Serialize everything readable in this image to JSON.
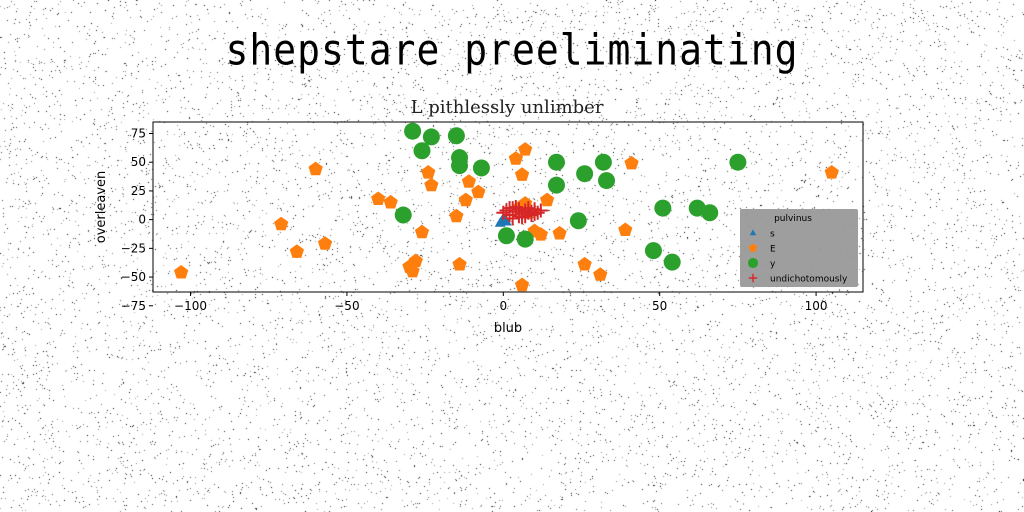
{
  "title": "shepstare preeliminating",
  "chart_data": {
    "type": "scatter",
    "title": "L pithlessly unlimber",
    "xlabel": "blub",
    "ylabel": "overleaven",
    "xlim": [
      -112,
      115
    ],
    "ylim": [
      -63,
      85
    ],
    "xticks": [
      -100,
      -50,
      0,
      50,
      100
    ],
    "yticks": [
      -75,
      -50,
      -25,
      0,
      25,
      50,
      75
    ],
    "xtick_labels": [
      "−100",
      "−50",
      "0",
      "50",
      "100"
    ],
    "ytick_labels": [
      "−75",
      "−50",
      "−25",
      "0",
      "25",
      "50",
      "75"
    ],
    "grid": false,
    "legend": {
      "placement": "lower-right",
      "title": "pulvinus",
      "background": "#999999"
    },
    "series": [
      {
        "name": "s",
        "marker": "triangle",
        "color": "#1f77b4",
        "points": [
          [
            -1,
            -3
          ],
          [
            0,
            -2
          ],
          [
            1,
            -2
          ],
          [
            0,
            1
          ]
        ]
      },
      {
        "name": "E",
        "marker": "pentagon",
        "color": "#ff7f0e",
        "points": [
          [
            -103,
            -46
          ],
          [
            -71,
            -4
          ],
          [
            -66,
            -28
          ],
          [
            -60,
            44
          ],
          [
            -57,
            -21
          ],
          [
            -40,
            18
          ],
          [
            -36,
            15
          ],
          [
            -30,
            -41
          ],
          [
            -29,
            -45
          ],
          [
            -28,
            -36
          ],
          [
            -26,
            -11
          ],
          [
            -24,
            41
          ],
          [
            -23,
            30
          ],
          [
            -15,
            3
          ],
          [
            -14,
            -39
          ],
          [
            -12,
            17
          ],
          [
            -11,
            33
          ],
          [
            -8,
            24
          ],
          [
            4,
            53
          ],
          [
            5,
            10
          ],
          [
            6,
            39
          ],
          [
            6,
            -57
          ],
          [
            7,
            61
          ],
          [
            7,
            14
          ],
          [
            8,
            6
          ],
          [
            10,
            -10
          ],
          [
            12,
            -13
          ],
          [
            14,
            17
          ],
          [
            18,
            -12
          ],
          [
            26,
            -39
          ],
          [
            31,
            -48
          ],
          [
            39,
            -9
          ],
          [
            41,
            49
          ],
          [
            105,
            41
          ]
        ]
      },
      {
        "name": "y",
        "marker": "circle",
        "color": "#2ca02c",
        "points": [
          [
            -29,
            77
          ],
          [
            -26,
            60
          ],
          [
            -23,
            72
          ],
          [
            -15,
            73
          ],
          [
            -14,
            47
          ],
          [
            -14,
            54
          ],
          [
            -7,
            45
          ],
          [
            -32,
            4
          ],
          [
            1,
            -14
          ],
          [
            7,
            -17
          ],
          [
            17,
            50
          ],
          [
            17,
            30
          ],
          [
            24,
            -1
          ],
          [
            26,
            40
          ],
          [
            32,
            50
          ],
          [
            33,
            34
          ],
          [
            48,
            -27
          ],
          [
            51,
            10
          ],
          [
            54,
            -37
          ],
          [
            62,
            10
          ],
          [
            66,
            6
          ],
          [
            75,
            50
          ]
        ]
      },
      {
        "name": "undichotomously",
        "marker": "plus",
        "color": "#d62728",
        "points": [
          [
            0,
            6
          ],
          [
            1,
            8
          ],
          [
            2,
            4
          ],
          [
            3,
            10
          ],
          [
            3,
            1
          ],
          [
            4,
            7
          ],
          [
            5,
            3
          ],
          [
            5,
            9
          ],
          [
            6,
            5
          ],
          [
            6,
            2
          ],
          [
            7,
            8
          ],
          [
            7,
            3
          ],
          [
            8,
            6
          ],
          [
            8,
            10
          ],
          [
            9,
            4
          ],
          [
            9,
            7
          ],
          [
            10,
            5
          ],
          [
            10,
            9
          ],
          [
            11,
            6
          ],
          [
            4,
            11
          ],
          [
            2,
            10
          ],
          [
            12,
            8
          ]
        ]
      }
    ]
  }
}
